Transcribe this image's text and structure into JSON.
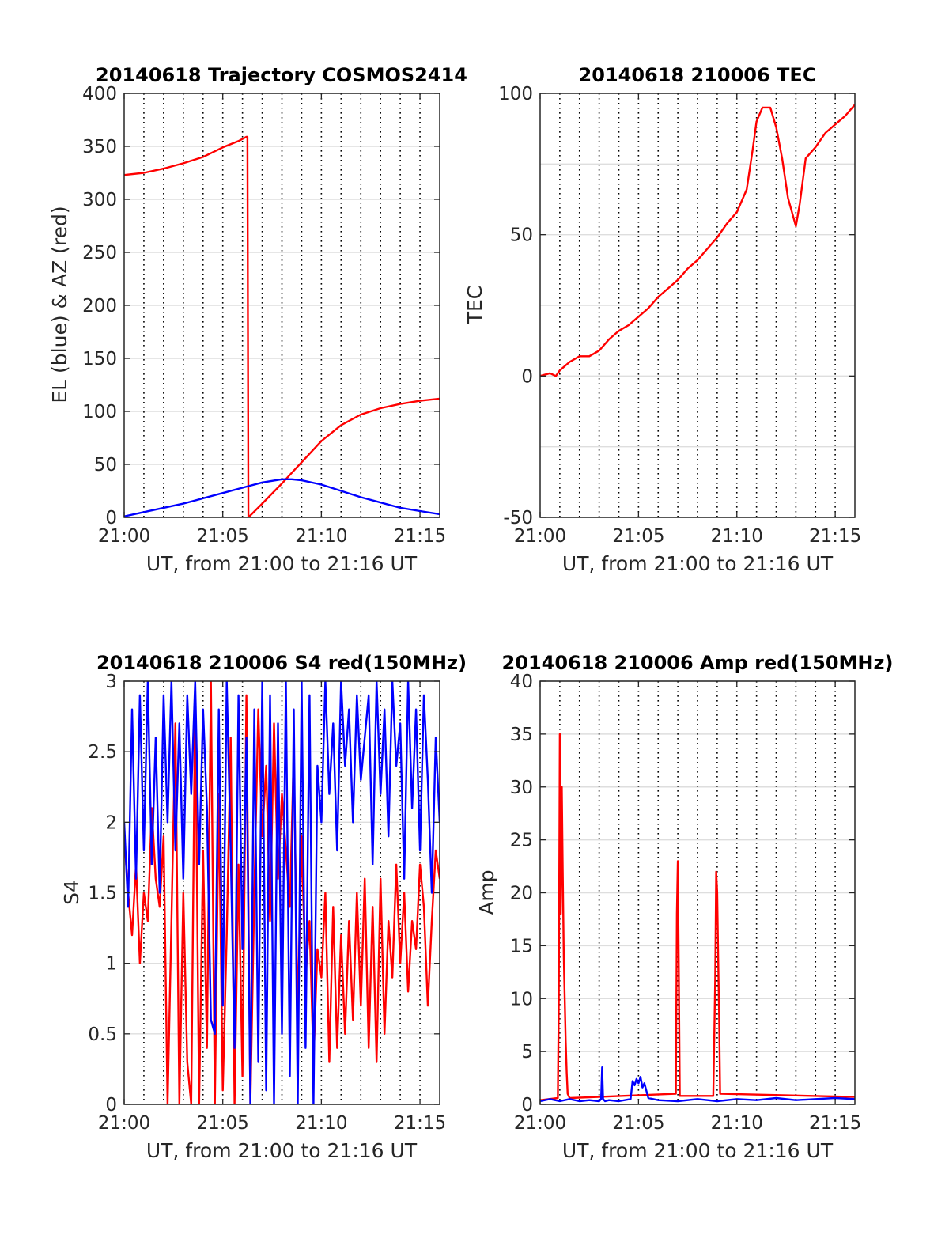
{
  "chart_data": [
    {
      "id": "trajectory",
      "type": "line",
      "title": "20140618 Trajectory COSMOS2414",
      "xlabel": "UT, from 21:00 to 21:16 UT",
      "ylabel": "EL (blue) & AZ (red)",
      "xlim": [
        0,
        16
      ],
      "ylim": [
        0,
        400
      ],
      "xticks": [
        {
          "v": 0,
          "label": "21:00"
        },
        {
          "v": 5,
          "label": "21:05"
        },
        {
          "v": 10,
          "label": "21:10"
        },
        {
          "v": 15,
          "label": "21:15"
        }
      ],
      "yticks": [
        {
          "v": 0,
          "label": "0"
        },
        {
          "v": 50,
          "label": "50"
        },
        {
          "v": 100,
          "label": "100"
        },
        {
          "v": 150,
          "label": "150"
        },
        {
          "v": 200,
          "label": "200"
        },
        {
          "v": 250,
          "label": "250"
        },
        {
          "v": 300,
          "label": "300"
        },
        {
          "v": 350,
          "label": "350"
        },
        {
          "v": 400,
          "label": "400"
        }
      ],
      "grid": true,
      "minor_x_grid_step": 1,
      "series": [
        {
          "color": "#ff0000",
          "x": [
            0,
            1,
            2,
            3,
            4,
            5,
            5.8,
            6.2,
            6.25,
            6.3,
            7,
            8,
            9,
            10,
            11,
            12,
            13,
            14,
            15,
            16
          ],
          "y": [
            323,
            325,
            329,
            334,
            340,
            349,
            355,
            359,
            359,
            0,
            13,
            32,
            52,
            72,
            87,
            97,
            103,
            107,
            110,
            112
          ]
        },
        {
          "color": "#0000ff",
          "x": [
            0,
            1,
            2,
            3,
            4,
            5,
            6,
            7,
            8,
            8.5,
            9,
            10,
            11,
            12,
            13,
            14,
            15,
            16
          ],
          "y": [
            1,
            5,
            9,
            13,
            18,
            23,
            28,
            33,
            36,
            36,
            35,
            31,
            25,
            19,
            14,
            9,
            6,
            3
          ]
        }
      ]
    },
    {
      "id": "tec",
      "type": "line",
      "title": "20140618 210006 TEC",
      "xlabel": "UT, from 21:00 to 21:16 UT",
      "ylabel": "TEC",
      "xlim": [
        0,
        16
      ],
      "ylim": [
        -50,
        100
      ],
      "xticks": [
        {
          "v": 0,
          "label": "21:00"
        },
        {
          "v": 5,
          "label": "21:05"
        },
        {
          "v": 10,
          "label": "21:10"
        },
        {
          "v": 15,
          "label": "21:15"
        }
      ],
      "yticks": [
        {
          "v": -50,
          "label": "-50"
        },
        {
          "v": 0,
          "label": "0"
        },
        {
          "v": 50,
          "label": "50"
        },
        {
          "v": 100,
          "label": "100"
        }
      ],
      "y_grid_values": [
        -50,
        -25,
        0,
        25,
        50,
        75,
        100
      ],
      "grid": true,
      "minor_x_grid_step": 1,
      "series": [
        {
          "color": "#ff0000",
          "x": [
            0,
            0.5,
            0.8,
            1,
            1.5,
            2,
            2.5,
            3,
            3.5,
            4,
            4.5,
            5,
            5.5,
            6,
            6.5,
            7,
            7.5,
            8,
            8.5,
            9,
            9.5,
            10,
            10.5,
            10.8,
            11,
            11.3,
            11.7,
            12,
            12.3,
            12.6,
            12.8,
            13,
            13.2,
            13.5,
            14,
            14.5,
            15,
            15.5,
            16
          ],
          "y": [
            0,
            1,
            0,
            2,
            5,
            7,
            7,
            9,
            13,
            16,
            18,
            21,
            24,
            28,
            31,
            34,
            38,
            41,
            45,
            49,
            54,
            58,
            66,
            80,
            90,
            95,
            95,
            88,
            77,
            63,
            58,
            53,
            61,
            77,
            81,
            86,
            89,
            92,
            96
          ]
        }
      ]
    },
    {
      "id": "s4",
      "type": "line",
      "title": "20140618 210006 S4 red(150MHz)",
      "xlabel": "UT, from 21:00 to 21:16 UT",
      "ylabel": "S4",
      "xlim": [
        0,
        16
      ],
      "ylim": [
        0,
        3
      ],
      "xticks": [
        {
          "v": 0,
          "label": "21:00"
        },
        {
          "v": 5,
          "label": "21:05"
        },
        {
          "v": 10,
          "label": "21:10"
        },
        {
          "v": 15,
          "label": "21:15"
        }
      ],
      "yticks": [
        {
          "v": 0,
          "label": "0"
        },
        {
          "v": 0.5,
          "label": "0.5"
        },
        {
          "v": 1,
          "label": "1"
        },
        {
          "v": 1.5,
          "label": "1.5"
        },
        {
          "v": 2,
          "label": "2"
        },
        {
          "v": 2.5,
          "label": "2.5"
        },
        {
          "v": 3,
          "label": "3"
        }
      ],
      "grid": true,
      "minor_x_grid_step": 1,
      "series": [
        {
          "color": "#ff0000",
          "x": [
            0,
            0.2,
            0.4,
            0.6,
            0.8,
            1,
            1.2,
            1.4,
            1.6,
            1.8,
            2,
            2.2,
            2.4,
            2.6,
            2.8,
            3,
            3.2,
            3.4,
            3.6,
            3.8,
            4,
            4.2,
            4.4,
            4.6,
            4.8,
            5,
            5.2,
            5.4,
            5.6,
            5.8,
            6,
            6.2,
            6.4,
            6.6,
            6.8,
            7,
            7.2,
            7.4,
            7.6,
            7.8,
            8,
            8.2,
            8.4,
            8.6,
            8.8,
            9,
            9.2,
            9.4,
            9.6,
            9.8,
            10,
            10.2,
            10.4,
            10.6,
            10.8,
            11,
            11.2,
            11.4,
            11.6,
            11.8,
            12,
            12.2,
            12.4,
            12.6,
            12.8,
            13,
            13.2,
            13.4,
            13.6,
            13.8,
            14,
            14.2,
            14.4,
            14.6,
            14.8,
            15,
            15.2,
            15.4,
            15.6,
            15.8,
            16
          ],
          "y": [
            1.9,
            1.5,
            1.2,
            1.7,
            1.0,
            1.5,
            1.3,
            2.1,
            1.6,
            1.4,
            1.9,
            0,
            1.3,
            2.7,
            0,
            1.5,
            0.3,
            0,
            2.9,
            0,
            1.8,
            0.4,
            3.0,
            0,
            2.2,
            0.1,
            1.2,
            2.6,
            0,
            1.7,
            0.2,
            2.9,
            0,
            1.5,
            2.8,
            1.9,
            2.4,
            1.3,
            2.7,
            1.6,
            2.2,
            1.8,
            1.4,
            2.5,
            0.6,
            1.9,
            0.9,
            1.3,
            0.3,
            1.1,
            0.9,
            1.5,
            0.3,
            1.4,
            0.4,
            1.2,
            0.5,
            1.3,
            0.6,
            1.5,
            0.7,
            1.6,
            0.4,
            1.4,
            0.3,
            1.6,
            0.5,
            1.3,
            0.9,
            1.7,
            1.0,
            1.5,
            0.8,
            1.3,
            1.1,
            1.7,
            1.4,
            0.7,
            1.3,
            1.8,
            1.6
          ]
        },
        {
          "color": "#0000ff",
          "x": [
            0,
            0.2,
            0.4,
            0.6,
            0.8,
            1,
            1.2,
            1.4,
            1.6,
            1.8,
            2,
            2.2,
            2.4,
            2.6,
            2.8,
            3,
            3.2,
            3.4,
            3.6,
            3.8,
            4,
            4.2,
            4.4,
            4.6,
            4.8,
            5,
            5.2,
            5.4,
            5.6,
            5.8,
            6,
            6.2,
            6.4,
            6.6,
            6.8,
            7,
            7.2,
            7.4,
            7.6,
            7.8,
            8,
            8.2,
            8.4,
            8.6,
            8.8,
            9,
            9.2,
            9.4,
            9.6,
            9.8,
            10,
            10.2,
            10.4,
            10.6,
            10.8,
            11,
            11.2,
            11.4,
            11.6,
            11.8,
            12,
            12.2,
            12.4,
            12.6,
            12.8,
            13,
            13.2,
            13.4,
            13.6,
            13.8,
            14,
            14.2,
            14.4,
            14.6,
            14.8,
            15,
            15.2,
            15.4,
            15.6,
            15.8,
            16
          ],
          "y": [
            2.0,
            1.4,
            2.8,
            1.6,
            2.9,
            1.8,
            3.0,
            1.7,
            2.6,
            1.5,
            2.9,
            2.0,
            3.0,
            1.8,
            2.7,
            1.6,
            2.9,
            2.2,
            3.0,
            1.7,
            2.8,
            2.1,
            0.6,
            0.5,
            2.8,
            0.7,
            3.0,
            1.8,
            0.4,
            2.9,
            1.1,
            2.6,
            0,
            2.8,
            0.3,
            3.0,
            0.1,
            2.9,
            0,
            2.7,
            0.5,
            3.0,
            0.2,
            2.8,
            0,
            3.0,
            0.4,
            2.9,
            0,
            2.4,
            2.0,
            3.0,
            2.2,
            2.7,
            1.8,
            3.0,
            2.4,
            2.8,
            2.0,
            2.9,
            2.3,
            2.6,
            2.9,
            1.7,
            3.0,
            2.2,
            2.8,
            1.9,
            3.0,
            2.4,
            2.7,
            1.6,
            3.0,
            2.1,
            2.8,
            1.8,
            2.9,
            2.3,
            1.5,
            2.6,
            2.0
          ]
        }
      ]
    },
    {
      "id": "amp",
      "type": "line",
      "title": "20140618 210006 Amp red(150MHz)",
      "xlabel": "UT, from 21:00 to 21:16 UT",
      "ylabel": "Amp",
      "xlim": [
        0,
        16
      ],
      "ylim": [
        0,
        40
      ],
      "xticks": [
        {
          "v": 0,
          "label": "21:00"
        },
        {
          "v": 5,
          "label": "21:05"
        },
        {
          "v": 10,
          "label": "21:10"
        },
        {
          "v": 15,
          "label": "21:15"
        }
      ],
      "yticks": [
        {
          "v": 0,
          "label": "0"
        },
        {
          "v": 5,
          "label": "5"
        },
        {
          "v": 10,
          "label": "10"
        },
        {
          "v": 15,
          "label": "15"
        },
        {
          "v": 20,
          "label": "20"
        },
        {
          "v": 25,
          "label": "25"
        },
        {
          "v": 30,
          "label": "30"
        },
        {
          "v": 35,
          "label": "35"
        },
        {
          "v": 40,
          "label": "40"
        }
      ],
      "grid": true,
      "minor_x_grid_step": 1,
      "series": [
        {
          "color": "#ff0000",
          "x": [
            0,
            0.9,
            0.95,
            1.0,
            1.05,
            1.1,
            1.15,
            1.2,
            1.25,
            1.3,
            1.35,
            1.4,
            1.5,
            6.9,
            6.95,
            7.0,
            7.05,
            7.1,
            8.8,
            8.85,
            8.9,
            8.95,
            9.0,
            9.05,
            9.1,
            9.15,
            16
          ],
          "y": [
            0.4,
            0.6,
            10,
            35,
            18,
            30,
            22,
            14,
            10,
            6,
            3,
            1,
            0.6,
            1,
            18,
            23,
            12,
            0.8,
            0.8,
            6,
            12,
            22,
            20,
            14,
            8,
            1,
            0.7
          ]
        },
        {
          "color": "#0000ff",
          "x": [
            0,
            0.5,
            1,
            1.5,
            2,
            2.5,
            3,
            3.1,
            3.15,
            3.2,
            3.3,
            3.5,
            4,
            4.6,
            4.7,
            4.8,
            4.9,
            5.0,
            5.1,
            5.2,
            5.3,
            5.5,
            6,
            7,
            8,
            9,
            10,
            11,
            12,
            13,
            14,
            15,
            16
          ],
          "y": [
            0.3,
            0.5,
            0.3,
            0.5,
            0.3,
            0.4,
            0.3,
            0.5,
            3.5,
            0.5,
            0.3,
            0.4,
            0.3,
            0.5,
            2.2,
            1.8,
            2.4,
            2.0,
            2.6,
            1.6,
            2.0,
            0.6,
            0.4,
            0.3,
            0.5,
            0.3,
            0.5,
            0.4,
            0.6,
            0.4,
            0.5,
            0.6,
            0.5
          ]
        }
      ]
    }
  ]
}
